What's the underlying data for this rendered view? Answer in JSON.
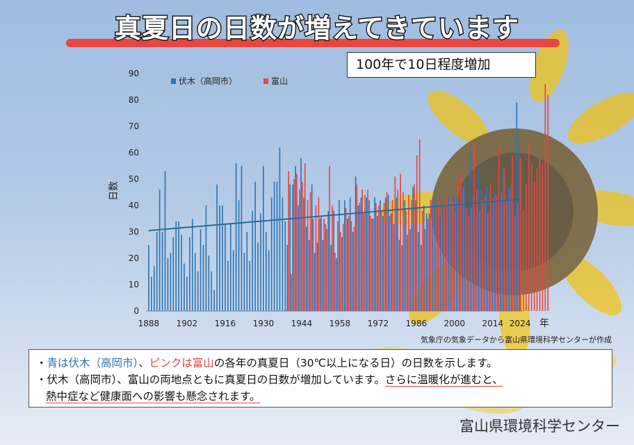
{
  "title": "真夏日の日数が増えてきています",
  "callout": "100年で10日程度増加",
  "source": "気象庁の気象データから富山県環境科学センターが作成",
  "footer": "富山県環境科学センター",
  "notes": {
    "line1": {
      "bullet": "・",
      "blue": "青は伏木（高岡市）",
      "sep": "、",
      "pink": "ピンクは富山",
      "rest": "の各年の真夏日（30℃以上になる日）の日数を示します。"
    },
    "line2": {
      "bullet": "・",
      "plain": "伏木（高岡市）、富山の両地点ともに真夏日の日数が増加しています。",
      "underlined": "さらに温暖化が進むと、"
    },
    "line3": {
      "underlined": "熱中症など健康面への影響も懸念されます。"
    }
  },
  "colors": {
    "fushiki": "#2e75b6",
    "toyama": "#e8463f",
    "trend": "#2b6c8f",
    "title_underline": "#e8463f"
  },
  "chart_data": {
    "type": "bar",
    "ylabel": "日数",
    "xlabel": "年",
    "ylim": [
      0,
      90
    ],
    "yticks": [
      0,
      10,
      20,
      30,
      40,
      50,
      60,
      70,
      80,
      90
    ],
    "xlim": [
      1887,
      2025
    ],
    "xticks": [
      1888,
      1902,
      1916,
      1930,
      1944,
      1958,
      1972,
      1986,
      2000,
      2014,
      2024
    ],
    "legend": {
      "position": "top-left"
    },
    "trend": {
      "series": "伏木（高岡市）",
      "start": {
        "x": 1888,
        "y": 30.5
      },
      "end": {
        "x": 2024,
        "y": 42.3
      }
    },
    "series": [
      {
        "name": "伏木（高岡市）",
        "start_year": 1888,
        "values": [
          25,
          13,
          17,
          30,
          46,
          30,
          53,
          20,
          22,
          28,
          34,
          34,
          29,
          18,
          13,
          28,
          35,
          22,
          15,
          31,
          25,
          40,
          21,
          15,
          8,
          48,
          40,
          40,
          33,
          19,
          33,
          23,
          56,
          42,
          55,
          22,
          30,
          19,
          38,
          49,
          26,
          37,
          55,
          30,
          23,
          43,
          49,
          49,
          62,
          43,
          34,
          25,
          48,
          48,
          55,
          40,
          58,
          43,
          32,
          27,
          48,
          22,
          26,
          35,
          27,
          33,
          38,
          25,
          38,
          20,
          42,
          28,
          42,
          35,
          43,
          30,
          51,
          40,
          43,
          37,
          43,
          42,
          35,
          43,
          36,
          42,
          36,
          43,
          44,
          37,
          33,
          43,
          27,
          25,
          42,
          29,
          31,
          47,
          42,
          30,
          25,
          40,
          37,
          37,
          42,
          43,
          37,
          36,
          40,
          40,
          43,
          40,
          44,
          43,
          41,
          47,
          50,
          39,
          61,
          43,
          36,
          54,
          46,
          41,
          47,
          45,
          41,
          45,
          43,
          42,
          54,
          44,
          47,
          48,
          41,
          79,
          64
        ]
      },
      {
        "name": "富山",
        "start_year": 1939,
        "values": [
          53,
          14,
          50,
          52,
          46,
          49,
          56,
          42,
          45,
          35,
          40,
          43,
          36,
          35,
          31,
          55,
          40,
          22,
          34,
          30,
          33,
          39,
          36,
          34,
          32,
          48,
          41,
          46,
          44,
          46,
          36,
          35,
          41,
          40,
          38,
          41,
          45,
          36,
          42,
          51,
          46,
          52,
          45,
          38,
          44,
          42,
          48,
          59,
          65,
          38,
          31,
          35,
          42,
          44,
          38,
          42,
          36,
          40,
          43,
          41,
          42,
          38,
          50,
          52,
          47,
          39,
          36,
          39,
          63,
          46,
          38,
          42,
          44,
          37,
          48,
          43,
          44,
          62,
          45,
          54,
          42,
          46,
          59,
          36,
          41,
          58,
          38,
          48,
          64,
          56,
          49,
          54,
          58,
          56,
          86,
          82
        ]
      }
    ]
  }
}
